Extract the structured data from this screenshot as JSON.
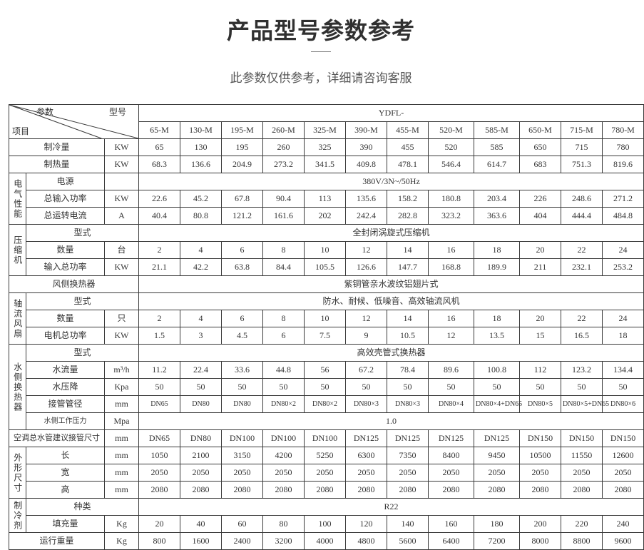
{
  "title": "产品型号参数参考",
  "subtitle": "此参数仅供参考，详细请咨询客服",
  "diag": {
    "param": "参数",
    "model": "型号",
    "item": "项目"
  },
  "series_prefix": "YDFL-",
  "models": [
    "65-M",
    "130-M",
    "195-M",
    "260-M",
    "325-M",
    "390-M",
    "455-M",
    "520-M",
    "585-M",
    "650-M",
    "715-M",
    "780-M"
  ],
  "rows": {
    "cooling": {
      "label": "制冷量",
      "unit": "KW",
      "vals": [
        "65",
        "130",
        "195",
        "260",
        "325",
        "390",
        "455",
        "520",
        "585",
        "650",
        "715",
        "780"
      ]
    },
    "heating": {
      "label": "制热量",
      "unit": "KW",
      "vals": [
        "68.3",
        "136.6",
        "204.9",
        "273.2",
        "341.5",
        "409.8",
        "478.1",
        "546.4",
        "614.7",
        "683",
        "751.3",
        "819.6"
      ]
    },
    "elec": {
      "cat": "电气性能",
      "power_src": {
        "label": "电源",
        "unit": "",
        "span": "380V/3N~/50Hz"
      },
      "input_power": {
        "label": "总输入功率",
        "unit": "KW",
        "vals": [
          "22.6",
          "45.2",
          "67.8",
          "90.4",
          "113",
          "135.6",
          "158.2",
          "180.8",
          "203.4",
          "226",
          "248.6",
          "271.2"
        ]
      },
      "run_current": {
        "label": "总运转电流",
        "unit": "A",
        "vals": [
          "40.4",
          "80.8",
          "121.2",
          "161.6",
          "202",
          "242.4",
          "282.8",
          "323.2",
          "363.6",
          "404",
          "444.4",
          "484.8"
        ]
      }
    },
    "comp": {
      "cat": "压缩机",
      "type": {
        "label": "型式",
        "unit": "",
        "span": "全封闭涡旋式压缩机"
      },
      "qty": {
        "label": "数量",
        "unit": "台",
        "vals": [
          "2",
          "4",
          "6",
          "8",
          "10",
          "12",
          "14",
          "16",
          "18",
          "20",
          "22",
          "24"
        ]
      },
      "input": {
        "label": "输入总功率",
        "unit": "KW",
        "vals": [
          "21.1",
          "42.2",
          "63.8",
          "84.4",
          "105.5",
          "126.6",
          "147.7",
          "168.8",
          "189.9",
          "211",
          "232.1",
          "253.2"
        ]
      }
    },
    "air_ex": {
      "label": "风侧换热器",
      "span": "紫铜管亲水波纹铝翅片式"
    },
    "fan": {
      "cat": "轴流风扇",
      "type": {
        "label": "型式",
        "unit": "",
        "span": "防水、耐候、低噪音、高效轴流风机"
      },
      "qty": {
        "label": "数量",
        "unit": "只",
        "vals": [
          "2",
          "4",
          "6",
          "8",
          "10",
          "12",
          "14",
          "16",
          "18",
          "20",
          "22",
          "24"
        ]
      },
      "motor": {
        "label": "电机总功率",
        "unit": "KW",
        "vals": [
          "1.5",
          "3",
          "4.5",
          "6",
          "7.5",
          "9",
          "10.5",
          "12",
          "13.5",
          "15",
          "16.5",
          "18"
        ]
      }
    },
    "water_ex": {
      "cat": "水侧换热器",
      "type": {
        "label": "型式",
        "unit": "",
        "span": "高效壳管式换热器"
      },
      "flow": {
        "label": "水流量",
        "unit": "m³/h",
        "vals": [
          "11.2",
          "22.4",
          "33.6",
          "44.8",
          "56",
          "67.2",
          "78.4",
          "89.6",
          "100.8",
          "112",
          "123.2",
          "134.4"
        ]
      },
      "drop": {
        "label": "水压降",
        "unit": "Kpa",
        "vals": [
          "50",
          "50",
          "50",
          "50",
          "50",
          "50",
          "50",
          "50",
          "50",
          "50",
          "50",
          "50"
        ]
      },
      "conn": {
        "label": "接管管径",
        "unit": "mm",
        "vals": [
          "DN65",
          "DN80",
          "DN80",
          "DN80×2",
          "DN80×2",
          "DN80×3",
          "DN80×3",
          "DN80×4",
          "DN80×4+DN65",
          "DN80×5",
          "DN80×5+DN65",
          "DN80×6"
        ]
      },
      "press": {
        "label": "水侧工作压力",
        "unit": "Mpa",
        "span": "1.0"
      }
    },
    "ac_conn": {
      "label": "空调总水管建议接管尺寸",
      "unit": "mm",
      "vals": [
        "DN65",
        "DN80",
        "DN100",
        "DN100",
        "DN100",
        "DN125",
        "DN125",
        "DN125",
        "DN125",
        "DN150",
        "DN150",
        "DN150"
      ]
    },
    "dims": {
      "cat": "外形尺寸",
      "l": {
        "label": "长",
        "unit": "mm",
        "vals": [
          "1050",
          "2100",
          "3150",
          "4200",
          "5250",
          "6300",
          "7350",
          "8400",
          "9450",
          "10500",
          "11550",
          "12600"
        ]
      },
      "w": {
        "label": "宽",
        "unit": "mm",
        "vals": [
          "2050",
          "2050",
          "2050",
          "2050",
          "2050",
          "2050",
          "2050",
          "2050",
          "2050",
          "2050",
          "2050",
          "2050"
        ]
      },
      "h": {
        "label": "高",
        "unit": "mm",
        "vals": [
          "2080",
          "2080",
          "2080",
          "2080",
          "2080",
          "2080",
          "2080",
          "2080",
          "2080",
          "2080",
          "2080",
          "2080"
        ]
      }
    },
    "refrig": {
      "cat": "制冷剂",
      "kind": {
        "label": "种类",
        "unit": "",
        "span": "R22"
      },
      "charge": {
        "label": "填充量",
        "unit": "Kg",
        "vals": [
          "20",
          "40",
          "60",
          "80",
          "100",
          "120",
          "140",
          "160",
          "180",
          "200",
          "220",
          "240"
        ]
      }
    },
    "run_weight": {
      "label": "运行重量",
      "unit": "Kg",
      "vals": [
        "800",
        "1600",
        "2400",
        "3200",
        "4000",
        "4800",
        "5600",
        "6400",
        "7200",
        "8000",
        "8800",
        "9600"
      ]
    }
  },
  "style": {
    "border_color": "#3a3a3a",
    "bg": "#ffffff",
    "text": "#333333",
    "title_color": "#303030",
    "subtitle_color": "#555555",
    "font_cell": 12,
    "font_title": 32,
    "font_subtitle": 17
  }
}
